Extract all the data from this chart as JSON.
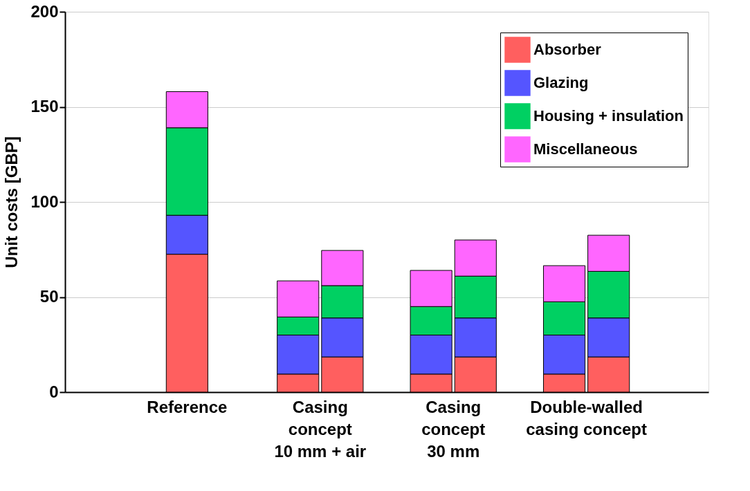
{
  "chart_data": {
    "type": "bar",
    "stacked": true,
    "ylabel": "Unit costs [GBP]",
    "categories": [
      null,
      null,
      null,
      null,
      null,
      "Reference",
      null,
      null,
      null,
      null,
      null,
      "Casing\nconcept\n10 mm + air",
      null,
      null,
      null,
      null,
      null,
      "Casing\nconcept\n30 mm",
      null,
      null,
      null,
      null,
      null,
      "Double-walled\ncasing concept",
      null,
      null,
      null,
      null,
      null
    ],
    "ylim": [
      0,
      200
    ],
    "yticks": [
      0,
      50,
      100,
      150,
      200
    ],
    "grid": "y",
    "legend": "top right",
    "series": [
      {
        "name": "Absorber",
        "color": "#ff5f5f",
        "values": [
          null,
          null,
          null,
          null,
          null,
          72.5,
          null,
          null,
          null,
          null,
          9.5,
          null,
          18.5,
          null,
          null,
          null,
          9.5,
          null,
          18.5,
          null,
          null,
          null,
          9.5,
          null,
          18.5,
          null,
          null,
          null,
          null
        ]
      },
      {
        "name": "Glazing",
        "color": "#5555ff",
        "values": [
          null,
          null,
          null,
          null,
          null,
          20.5,
          null,
          null,
          null,
          null,
          20.5,
          null,
          20.5,
          null,
          null,
          null,
          20.5,
          null,
          20.5,
          null,
          null,
          null,
          20.5,
          null,
          20.5,
          null,
          null,
          null,
          null
        ]
      },
      {
        "name": "Housing + insulation",
        "color": "#00d062",
        "values": [
          null,
          null,
          null,
          null,
          null,
          46,
          null,
          null,
          null,
          null,
          9.5,
          null,
          17,
          null,
          null,
          null,
          15,
          null,
          22,
          null,
          null,
          null,
          17.5,
          null,
          24.5,
          null,
          null,
          null,
          null
        ]
      },
      {
        "name": "Miscellaneous",
        "color": "#ff66ff",
        "values": [
          null,
          null,
          null,
          null,
          null,
          19,
          null,
          null,
          null,
          null,
          19,
          null,
          18.5,
          null,
          null,
          null,
          19,
          null,
          19,
          null,
          null,
          null,
          19,
          null,
          19,
          null,
          null,
          null,
          null
        ]
      }
    ]
  }
}
